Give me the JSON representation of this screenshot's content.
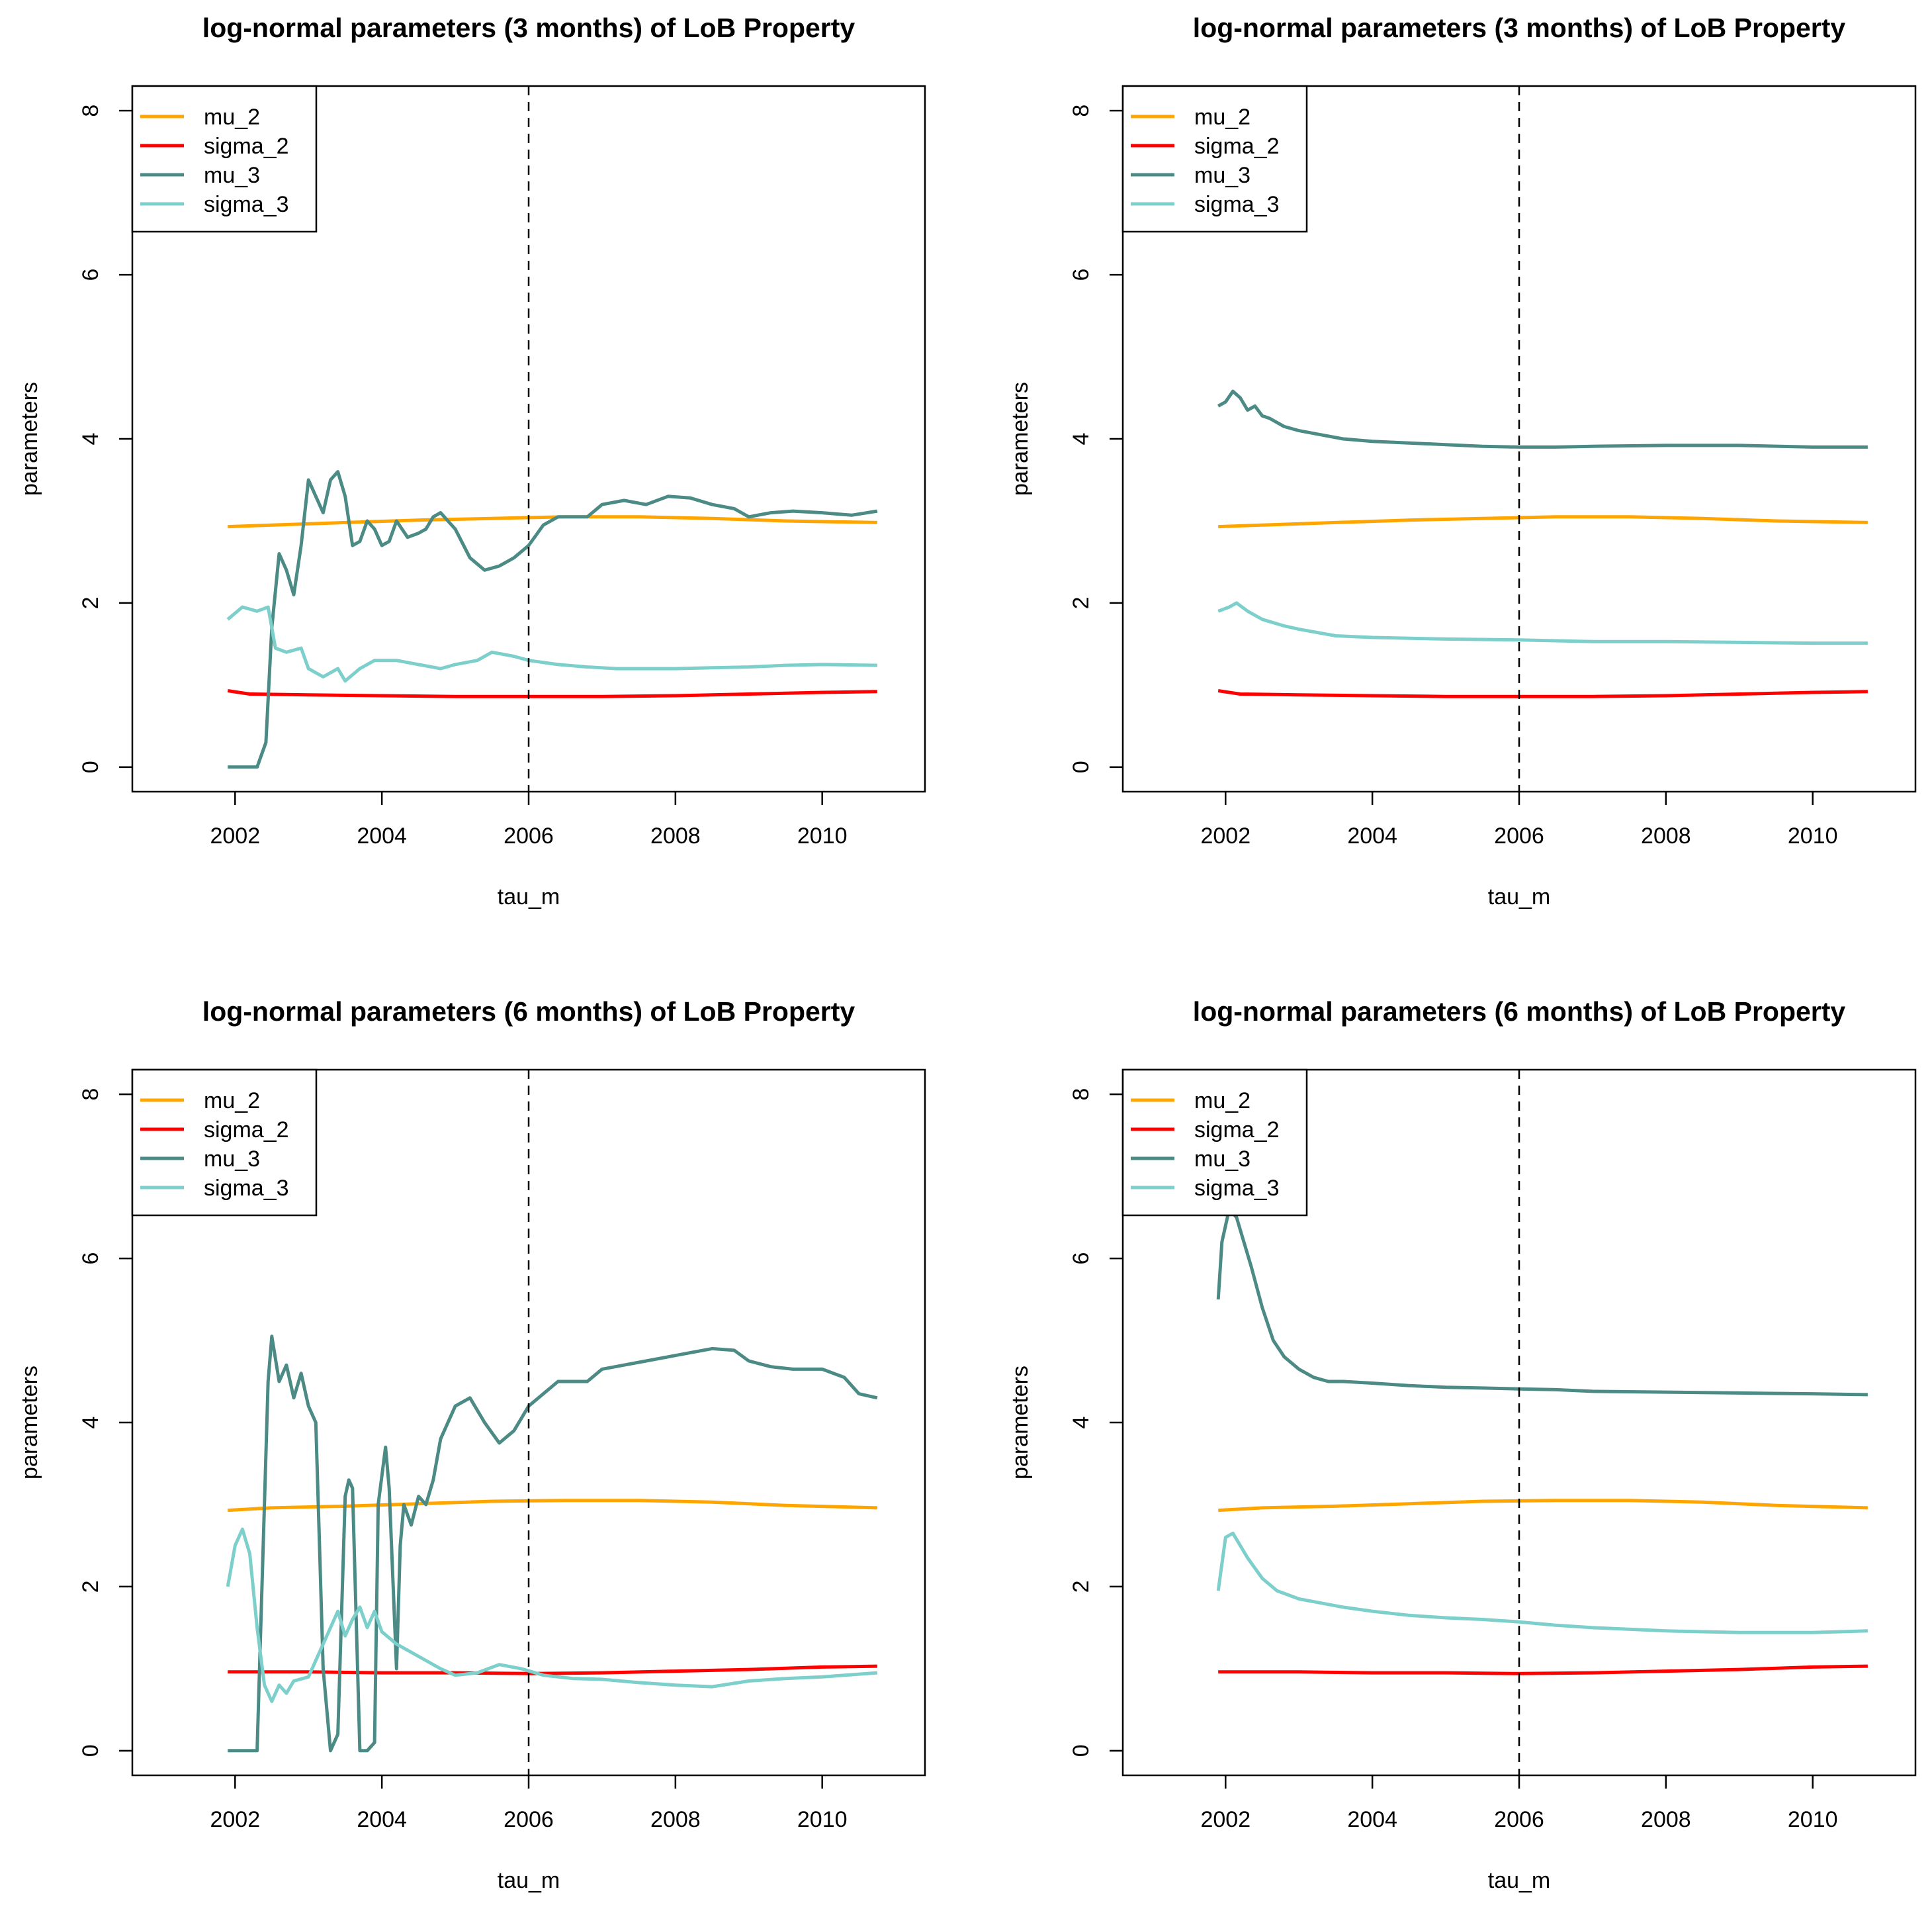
{
  "colors": {
    "mu_2": "#FFA500",
    "sigma_2": "#FF0000",
    "mu_3": "#4C8B85",
    "sigma_3": "#7CCFCB",
    "axis": "#000000",
    "vline": "#000000"
  },
  "chart_data": [
    {
      "id": "p1",
      "type": "line",
      "title": "log-normal parameters (3 months) of LoB Property",
      "xlabel": "tau_m",
      "ylabel": "parameters",
      "xlim": [
        2000.6,
        2011.4
      ],
      "ylim": [
        -0.3,
        8.3
      ],
      "xticks": [
        2002,
        2004,
        2006,
        2008,
        2010
      ],
      "yticks": [
        0,
        2,
        4,
        6,
        8
      ],
      "vline": 2006,
      "vline_style": "dashed",
      "legend_position": "top-left",
      "legend": [
        "mu_2",
        "sigma_2",
        "mu_3",
        "sigma_3"
      ],
      "series": [
        {
          "name": "mu_2",
          "color_key": "mu_2",
          "x": [
            2001.9,
            2002.5,
            2003.5,
            2004.5,
            2005.5,
            2006.5,
            2007.5,
            2008.5,
            2009.5,
            2010.75
          ],
          "y": [
            2.93,
            2.95,
            2.98,
            3.01,
            3.03,
            3.05,
            3.05,
            3.03,
            3.0,
            2.98
          ]
        },
        {
          "name": "sigma_2",
          "color_key": "sigma_2",
          "x": [
            2001.9,
            2002.2,
            2003.0,
            2004.0,
            2005.0,
            2006.0,
            2007.0,
            2008.0,
            2009.0,
            2010.0,
            2010.75
          ],
          "y": [
            0.93,
            0.89,
            0.88,
            0.87,
            0.86,
            0.86,
            0.86,
            0.87,
            0.89,
            0.91,
            0.92
          ]
        },
        {
          "name": "mu_3",
          "color_key": "mu_3",
          "x": [
            2001.9,
            2002.3,
            2002.42,
            2002.5,
            2002.6,
            2002.7,
            2002.8,
            2002.9,
            2003.0,
            2003.1,
            2003.2,
            2003.3,
            2003.4,
            2003.5,
            2003.6,
            2003.7,
            2003.8,
            2003.9,
            2004.0,
            2004.1,
            2004.2,
            2004.35,
            2004.5,
            2004.6,
            2004.7,
            2004.8,
            2004.9,
            2005.0,
            2005.2,
            2005.4,
            2005.6,
            2005.8,
            2006.0,
            2006.2,
            2006.4,
            2006.6,
            2006.8,
            2007.0,
            2007.3,
            2007.6,
            2007.9,
            2008.2,
            2008.5,
            2008.8,
            2009.0,
            2009.3,
            2009.6,
            2010.0,
            2010.4,
            2010.75
          ],
          "y": [
            0.0,
            0.0,
            0.3,
            1.7,
            2.6,
            2.4,
            2.1,
            2.7,
            3.5,
            3.3,
            3.1,
            3.5,
            3.6,
            3.3,
            2.7,
            2.75,
            3.0,
            2.9,
            2.7,
            2.75,
            3.0,
            2.8,
            2.85,
            2.9,
            3.05,
            3.1,
            3.0,
            2.9,
            2.55,
            2.4,
            2.45,
            2.55,
            2.7,
            2.95,
            3.05,
            3.05,
            3.05,
            3.2,
            3.25,
            3.2,
            3.3,
            3.28,
            3.2,
            3.15,
            3.05,
            3.1,
            3.12,
            3.1,
            3.07,
            3.12
          ]
        },
        {
          "name": "sigma_3",
          "color_key": "sigma_3",
          "x": [
            2001.9,
            2002.1,
            2002.3,
            2002.45,
            2002.55,
            2002.7,
            2002.9,
            2003.0,
            2003.2,
            2003.4,
            2003.5,
            2003.7,
            2003.9,
            2004.2,
            2004.5,
            2004.8,
            2005.0,
            2005.3,
            2005.5,
            2005.8,
            2006.0,
            2006.4,
            2006.8,
            2007.2,
            2007.6,
            2008.0,
            2008.5,
            2009.0,
            2009.5,
            2010.0,
            2010.75
          ],
          "y": [
            1.8,
            1.95,
            1.9,
            1.95,
            1.45,
            1.4,
            1.45,
            1.2,
            1.1,
            1.2,
            1.05,
            1.2,
            1.3,
            1.3,
            1.25,
            1.2,
            1.25,
            1.3,
            1.4,
            1.35,
            1.3,
            1.25,
            1.22,
            1.2,
            1.2,
            1.2,
            1.21,
            1.22,
            1.24,
            1.25,
            1.24
          ]
        }
      ]
    },
    {
      "id": "p2",
      "type": "line",
      "title": "log-normal parameters (3 months) of LoB Property",
      "xlabel": "tau_m",
      "ylabel": "parameters",
      "xlim": [
        2000.6,
        2011.4
      ],
      "ylim": [
        -0.3,
        8.3
      ],
      "xticks": [
        2002,
        2004,
        2006,
        2008,
        2010
      ],
      "yticks": [
        0,
        2,
        4,
        6,
        8
      ],
      "vline": 2006,
      "vline_style": "dashed",
      "legend_position": "top-left",
      "legend": [
        "mu_2",
        "sigma_2",
        "mu_3",
        "sigma_3"
      ],
      "series": [
        {
          "name": "mu_2",
          "color_key": "mu_2",
          "x": [
            2001.9,
            2002.5,
            2003.5,
            2004.5,
            2005.5,
            2006.5,
            2007.5,
            2008.5,
            2009.5,
            2010.75
          ],
          "y": [
            2.93,
            2.95,
            2.98,
            3.01,
            3.03,
            3.05,
            3.05,
            3.03,
            3.0,
            2.98
          ]
        },
        {
          "name": "sigma_2",
          "color_key": "sigma_2",
          "x": [
            2001.9,
            2002.2,
            2003.0,
            2004.0,
            2005.0,
            2006.0,
            2007.0,
            2008.0,
            2009.0,
            2010.0,
            2010.75
          ],
          "y": [
            0.93,
            0.89,
            0.88,
            0.87,
            0.86,
            0.86,
            0.86,
            0.87,
            0.89,
            0.91,
            0.92
          ]
        },
        {
          "name": "mu_3",
          "color_key": "mu_3",
          "x": [
            2001.9,
            2002.0,
            2002.1,
            2002.2,
            2002.3,
            2002.4,
            2002.5,
            2002.6,
            2002.8,
            2003.0,
            2003.3,
            2003.6,
            2004.0,
            2004.5,
            2005.0,
            2005.5,
            2006.0,
            2006.5,
            2007.0,
            2008.0,
            2009.0,
            2010.0,
            2010.75
          ],
          "y": [
            4.4,
            4.45,
            4.58,
            4.5,
            4.35,
            4.4,
            4.28,
            4.25,
            4.15,
            4.1,
            4.05,
            4.0,
            3.97,
            3.95,
            3.93,
            3.91,
            3.9,
            3.9,
            3.91,
            3.92,
            3.92,
            3.9,
            3.9
          ]
        },
        {
          "name": "sigma_3",
          "color_key": "sigma_3",
          "x": [
            2001.9,
            2002.05,
            2002.15,
            2002.3,
            2002.5,
            2002.8,
            2003.0,
            2003.5,
            2004.0,
            2005.0,
            2006.0,
            2007.0,
            2008.0,
            2009.0,
            2010.0,
            2010.75
          ],
          "y": [
            1.9,
            1.95,
            2.0,
            1.9,
            1.8,
            1.72,
            1.68,
            1.6,
            1.58,
            1.56,
            1.55,
            1.53,
            1.53,
            1.52,
            1.51,
            1.51
          ]
        }
      ]
    },
    {
      "id": "p3",
      "type": "line",
      "title": "log-normal parameters (6 months) of LoB Property",
      "xlabel": "tau_m",
      "ylabel": "parameters",
      "xlim": [
        2000.6,
        2011.4
      ],
      "ylim": [
        -0.3,
        8.3
      ],
      "xticks": [
        2002,
        2004,
        2006,
        2008,
        2010
      ],
      "yticks": [
        0,
        2,
        4,
        6,
        8
      ],
      "vline": 2006,
      "vline_style": "dashed",
      "legend_position": "top-left",
      "legend": [
        "mu_2",
        "sigma_2",
        "mu_3",
        "sigma_3"
      ],
      "series": [
        {
          "name": "mu_2",
          "color_key": "mu_2",
          "x": [
            2001.9,
            2002.5,
            2003.5,
            2004.5,
            2005.5,
            2006.5,
            2007.5,
            2008.5,
            2009.5,
            2010.75
          ],
          "y": [
            2.93,
            2.96,
            2.98,
            3.01,
            3.04,
            3.05,
            3.05,
            3.03,
            2.99,
            2.96
          ]
        },
        {
          "name": "sigma_2",
          "color_key": "sigma_2",
          "x": [
            2001.9,
            2003.0,
            2004.0,
            2005.0,
            2006.0,
            2007.0,
            2008.0,
            2009.0,
            2010.0,
            2010.75
          ],
          "y": [
            0.96,
            0.96,
            0.95,
            0.95,
            0.94,
            0.95,
            0.97,
            0.99,
            1.02,
            1.03
          ]
        },
        {
          "name": "mu_3",
          "color_key": "mu_3",
          "x": [
            2001.9,
            2002.3,
            2002.35,
            2002.45,
            2002.5,
            2002.6,
            2002.7,
            2002.8,
            2002.9,
            2003.0,
            2003.1,
            2003.15,
            2003.2,
            2003.3,
            2003.4,
            2003.5,
            2003.55,
            2003.6,
            2003.7,
            2003.8,
            2003.9,
            2003.95,
            2004.05,
            2004.1,
            2004.2,
            2004.25,
            2004.3,
            2004.4,
            2004.5,
            2004.6,
            2004.7,
            2004.8,
            2005.0,
            2005.2,
            2005.4,
            2005.6,
            2005.8,
            2006.0,
            2006.2,
            2006.4,
            2006.6,
            2006.8,
            2007.0,
            2007.3,
            2007.6,
            2007.9,
            2008.2,
            2008.5,
            2008.8,
            2009.0,
            2009.3,
            2009.6,
            2010.0,
            2010.3,
            2010.5,
            2010.75
          ],
          "y": [
            0.0,
            0.0,
            1.5,
            4.5,
            5.05,
            4.5,
            4.7,
            4.3,
            4.6,
            4.2,
            4.0,
            2.5,
            1.0,
            0.0,
            0.2,
            3.1,
            3.3,
            3.2,
            0.0,
            0.0,
            0.1,
            3.0,
            3.7,
            3.2,
            1.0,
            2.5,
            3.0,
            2.75,
            3.1,
            3.0,
            3.3,
            3.8,
            4.2,
            4.3,
            4.0,
            3.75,
            3.9,
            4.2,
            4.35,
            4.5,
            4.5,
            4.5,
            4.65,
            4.7,
            4.75,
            4.8,
            4.85,
            4.9,
            4.88,
            4.75,
            4.68,
            4.65,
            4.65,
            4.55,
            4.35,
            4.3
          ]
        },
        {
          "name": "sigma_3",
          "color_key": "sigma_3",
          "x": [
            2001.9,
            2002.0,
            2002.1,
            2002.2,
            2002.3,
            2002.4,
            2002.5,
            2002.6,
            2002.7,
            2002.8,
            2003.0,
            2003.2,
            2003.4,
            2003.5,
            2003.6,
            2003.7,
            2003.8,
            2003.9,
            2004.0,
            2004.2,
            2004.4,
            2004.6,
            2004.8,
            2005.0,
            2005.3,
            2005.6,
            2005.9,
            2006.2,
            2006.6,
            2007.0,
            2007.5,
            2008.0,
            2008.5,
            2009.0,
            2009.5,
            2010.0,
            2010.75
          ],
          "y": [
            2.0,
            2.5,
            2.7,
            2.4,
            1.5,
            0.8,
            0.6,
            0.8,
            0.7,
            0.85,
            0.9,
            1.3,
            1.7,
            1.4,
            1.6,
            1.75,
            1.5,
            1.7,
            1.45,
            1.3,
            1.2,
            1.1,
            1.0,
            0.92,
            0.95,
            1.05,
            1.0,
            0.92,
            0.88,
            0.87,
            0.83,
            0.8,
            0.78,
            0.85,
            0.88,
            0.9,
            0.95
          ]
        }
      ]
    },
    {
      "id": "p4",
      "type": "line",
      "title": "log-normal parameters (6 months) of LoB Property",
      "xlabel": "tau_m",
      "ylabel": "parameters",
      "xlim": [
        2000.6,
        2011.4
      ],
      "ylim": [
        -0.3,
        8.3
      ],
      "xticks": [
        2002,
        2004,
        2006,
        2008,
        2010
      ],
      "yticks": [
        0,
        2,
        4,
        6,
        8
      ],
      "vline": 2006,
      "vline_style": "dashed",
      "legend_position": "top-left",
      "legend": [
        "mu_2",
        "sigma_2",
        "mu_3",
        "sigma_3"
      ],
      "series": [
        {
          "name": "mu_2",
          "color_key": "mu_2",
          "x": [
            2001.9,
            2002.5,
            2003.5,
            2004.5,
            2005.5,
            2006.5,
            2007.5,
            2008.5,
            2009.5,
            2010.75
          ],
          "y": [
            2.93,
            2.96,
            2.98,
            3.01,
            3.04,
            3.05,
            3.05,
            3.03,
            2.99,
            2.96
          ]
        },
        {
          "name": "sigma_2",
          "color_key": "sigma_2",
          "x": [
            2001.9,
            2003.0,
            2004.0,
            2005.0,
            2006.0,
            2007.0,
            2008.0,
            2009.0,
            2010.0,
            2010.75
          ],
          "y": [
            0.96,
            0.96,
            0.95,
            0.95,
            0.94,
            0.95,
            0.97,
            0.99,
            1.02,
            1.03
          ]
        },
        {
          "name": "mu_3",
          "color_key": "mu_3",
          "x": [
            2001.9,
            2001.95,
            2002.05,
            2002.15,
            2002.25,
            2002.35,
            2002.5,
            2002.65,
            2002.8,
            2003.0,
            2003.2,
            2003.4,
            2003.6,
            2004.0,
            2004.5,
            2005.0,
            2005.5,
            2006.0,
            2006.5,
            2007.0,
            2008.0,
            2009.0,
            2010.0,
            2010.75
          ],
          "y": [
            5.5,
            6.2,
            6.6,
            6.5,
            6.2,
            5.9,
            5.4,
            5.0,
            4.8,
            4.65,
            4.55,
            4.5,
            4.5,
            4.48,
            4.45,
            4.43,
            4.42,
            4.41,
            4.4,
            4.38,
            4.37,
            4.36,
            4.35,
            4.34
          ]
        },
        {
          "name": "sigma_3",
          "color_key": "sigma_3",
          "x": [
            2001.9,
            2002.0,
            2002.1,
            2002.2,
            2002.3,
            2002.5,
            2002.7,
            2003.0,
            2003.3,
            2003.6,
            2004.0,
            2004.5,
            2005.0,
            2005.5,
            2006.0,
            2006.5,
            2007.0,
            2008.0,
            2009.0,
            2010.0,
            2010.75
          ],
          "y": [
            1.95,
            2.6,
            2.65,
            2.5,
            2.35,
            2.1,
            1.95,
            1.85,
            1.8,
            1.75,
            1.7,
            1.65,
            1.62,
            1.6,
            1.57,
            1.53,
            1.5,
            1.46,
            1.44,
            1.44,
            1.46
          ]
        }
      ]
    }
  ]
}
